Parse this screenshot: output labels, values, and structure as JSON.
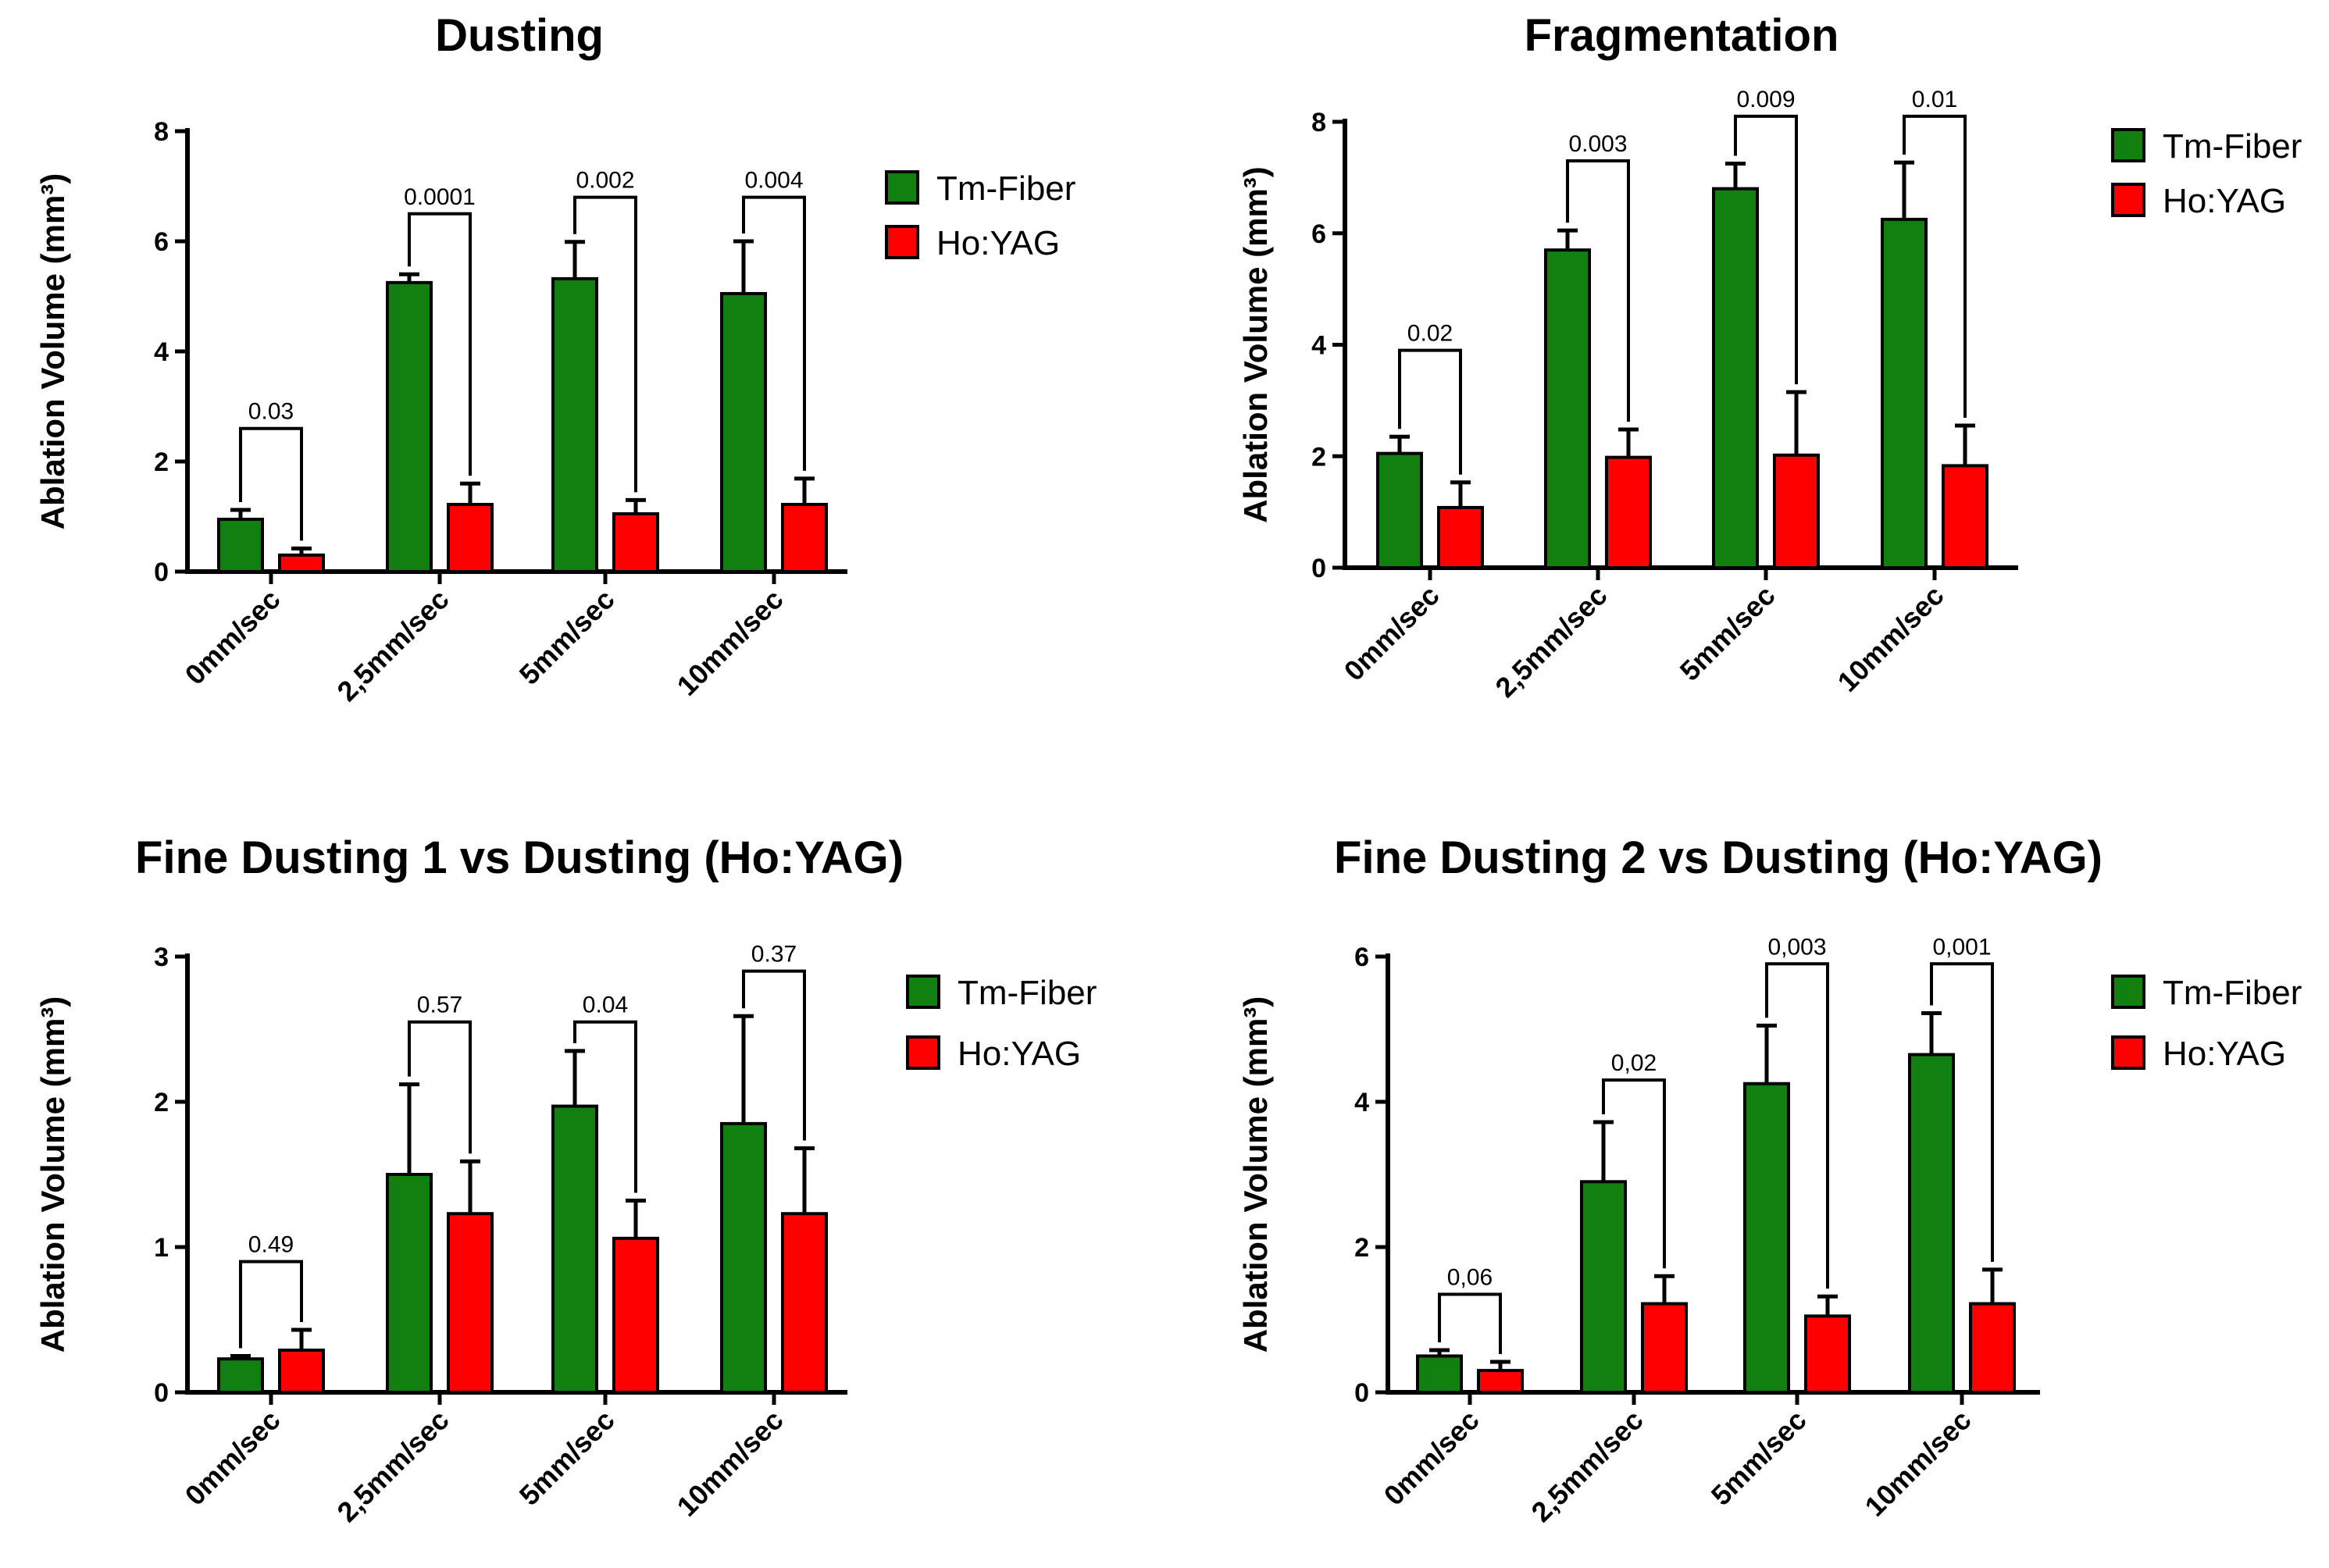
{
  "colors": {
    "tm": "#118011",
    "ho": "#ff0000",
    "axis": "#000000"
  },
  "legend": {
    "tm": "Tm-Fiber",
    "ho": "Ho:YAG"
  },
  "chart_data": [
    {
      "type": "bar",
      "title": "Dusting",
      "ylabel": "Ablation Volume (mm³)",
      "xlabel": "",
      "ylim": [
        0,
        8
      ],
      "yticks": [
        0,
        2,
        4,
        6,
        8
      ],
      "categories": [
        "0mm/sec",
        "2,5mm/sec",
        "5mm/sec",
        "10mm/sec"
      ],
      "series": [
        {
          "name": "Tm-Fiber",
          "values": [
            0.95,
            5.25,
            5.32,
            5.05
          ],
          "errors": [
            0.17,
            0.15,
            0.67,
            0.95
          ]
        },
        {
          "name": "Ho:YAG",
          "values": [
            0.3,
            1.22,
            1.05,
            1.22
          ],
          "errors": [
            0.12,
            0.38,
            0.25,
            0.47
          ]
        }
      ],
      "pvalues": [
        "0.03",
        "0.0001",
        "0.002",
        "0.004"
      ],
      "bracket_tops": [
        2.6,
        6.5,
        6.8,
        6.8
      ],
      "legend_position": "right"
    },
    {
      "type": "bar",
      "title": "Fragmentation",
      "ylabel": "Ablation Volume (mm³)",
      "xlabel": "",
      "ylim": [
        0,
        8
      ],
      "yticks": [
        0,
        2,
        4,
        6,
        8
      ],
      "categories": [
        "0mm/sec",
        "2,5mm/sec",
        "5mm/sec",
        "10mm/sec"
      ],
      "series": [
        {
          "name": "Tm-Fiber",
          "values": [
            2.05,
            5.7,
            6.8,
            6.25
          ],
          "errors": [
            0.3,
            0.35,
            0.45,
            1.02
          ]
        },
        {
          "name": "Ho:YAG",
          "values": [
            1.08,
            1.98,
            2.02,
            1.83
          ],
          "errors": [
            0.45,
            0.5,
            1.13,
            0.72
          ]
        }
      ],
      "pvalues": [
        "0.02",
        "0.003",
        "0.009",
        "0.01"
      ],
      "bracket_tops": [
        3.9,
        7.3,
        8.1,
        8.1
      ],
      "legend_position": "right"
    },
    {
      "type": "bar",
      "title": "Fine Dusting 1 vs Dusting (Ho:YAG)",
      "ylabel": "Ablation Volume (mm³)",
      "xlabel": "",
      "ylim": [
        0,
        3
      ],
      "yticks": [
        0,
        1,
        2,
        3
      ],
      "categories": [
        "0mm/sec",
        "2,5mm/sec",
        "5mm/sec",
        "10mm/sec"
      ],
      "series": [
        {
          "name": "Tm-Fiber",
          "values": [
            0.23,
            1.5,
            1.97,
            1.85
          ],
          "errors": [
            0.02,
            0.62,
            0.38,
            0.74
          ]
        },
        {
          "name": "Ho:YAG",
          "values": [
            0.29,
            1.23,
            1.06,
            1.23
          ],
          "errors": [
            0.14,
            0.36,
            0.26,
            0.45
          ]
        }
      ],
      "pvalues": [
        "0.49",
        "0.57",
        "0.04",
        "0.37"
      ],
      "bracket_tops": [
        0.9,
        2.55,
        2.55,
        2.9
      ],
      "legend_position": "right"
    },
    {
      "type": "bar",
      "title": "Fine Dusting 2 vs Dusting (Ho:YAG)",
      "ylabel": "Ablation Volume (mm³)",
      "xlabel": "",
      "ylim": [
        0,
        6
      ],
      "yticks": [
        0,
        2,
        4,
        6
      ],
      "categories": [
        "0mm/sec",
        "2,5mm/sec",
        "5mm/sec",
        "10mm/sec"
      ],
      "series": [
        {
          "name": "Tm-Fiber",
          "values": [
            0.5,
            2.9,
            4.25,
            4.65
          ],
          "errors": [
            0.08,
            0.82,
            0.8,
            0.57
          ]
        },
        {
          "name": "Ho:YAG",
          "values": [
            0.3,
            1.22,
            1.05,
            1.22
          ],
          "errors": [
            0.12,
            0.38,
            0.27,
            0.47
          ]
        }
      ],
      "pvalues": [
        "0,06",
        "0,02",
        "0,003",
        "0,001"
      ],
      "bracket_tops": [
        1.35,
        4.3,
        5.9,
        5.9
      ],
      "legend_position": "right"
    }
  ]
}
